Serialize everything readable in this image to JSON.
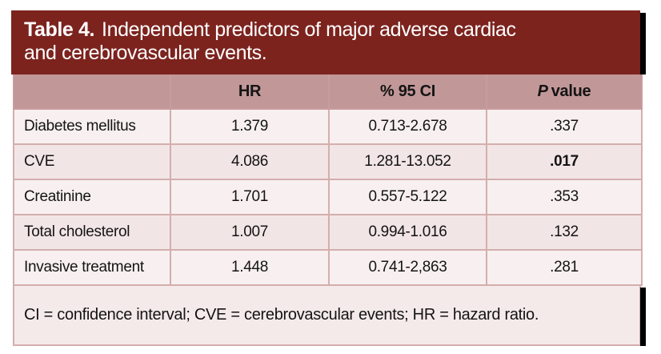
{
  "title": {
    "label": "Table 4.",
    "line1": "Independent predictors of major adverse cardiac",
    "line2": "and cerebrovascular events."
  },
  "table": {
    "headers": {
      "predictor": "",
      "hr": "HR",
      "ci": "% 95 CI",
      "p_italic": "P",
      "p_rest": "value"
    },
    "rows": [
      {
        "name": "Diabetes mellitus",
        "hr": "1.379",
        "ci": "0.713-2.678",
        "p": ".337",
        "p_bold": false
      },
      {
        "name": "CVE",
        "hr": "4.086",
        "ci": "1.281-13.052",
        "p": ".017",
        "p_bold": true
      },
      {
        "name": "Creatinine",
        "hr": "1.701",
        "ci": "0.557-5.122",
        "p": ".353",
        "p_bold": false
      },
      {
        "name": "Total cholesterol",
        "hr": "1.007",
        "ci": "0.994-1.016",
        "p": ".132",
        "p_bold": false
      },
      {
        "name": "Invasive treatment",
        "hr": "1.448",
        "ci": "0.741-2,863",
        "p": ".281",
        "p_bold": false
      }
    ]
  },
  "footnote": "CI = confidence interval; CVE = cerebrovascular events; HR = hazard ratio.",
  "colors": {
    "title_bg": "#7c231e",
    "title_text": "#ffffff",
    "header_bg": "#c29798",
    "row_light": "#f8f0f0",
    "row_dark": "#f2e5e5",
    "cell_border": "#d4aeae",
    "shadow": "#000000",
    "body_text": "#141414"
  }
}
